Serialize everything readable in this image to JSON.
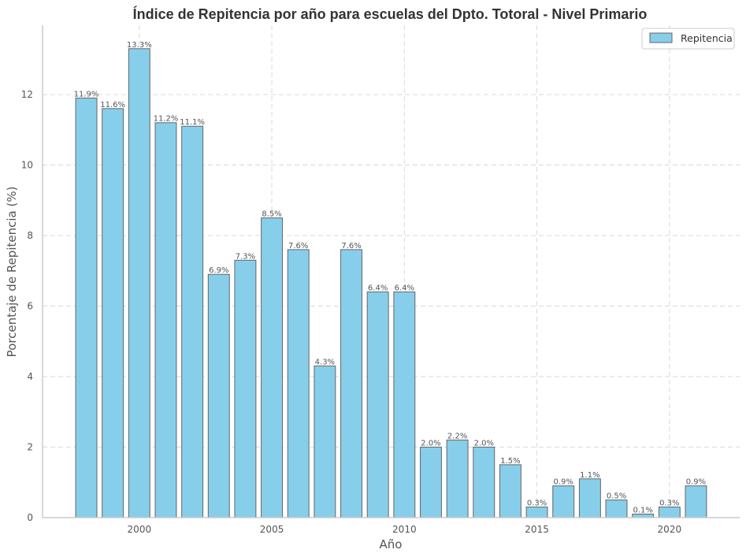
{
  "chart_data": {
    "type": "bar",
    "title": "Índice de Repitencia por año para escuelas del Dpto. Totoral - Nivel Primario",
    "xlabel": "Año",
    "ylabel": "Porcentaje de Repitencia (%)",
    "x": [
      1998,
      1999,
      2000,
      2001,
      2002,
      2003,
      2004,
      2005,
      2006,
      2007,
      2008,
      2009,
      2010,
      2011,
      2012,
      2013,
      2014,
      2015,
      2016,
      2017,
      2018,
      2019,
      2020,
      2021
    ],
    "series": [
      {
        "name": "Repitencia",
        "values": [
          11.9,
          11.6,
          13.3,
          11.2,
          11.1,
          6.9,
          7.3,
          8.5,
          7.6,
          4.3,
          7.6,
          6.4,
          6.4,
          2.0,
          2.2,
          2.0,
          1.5,
          0.3,
          0.9,
          1.1,
          0.5,
          0.1,
          0.3,
          0.9
        ],
        "labels": [
          "11.9%",
          "11.6%",
          "13.3%",
          "11.2%",
          "11.1%",
          "6.9%",
          "7.3%",
          "8.5%",
          "7.6%",
          "4.3%",
          "7.6%",
          "6.4%",
          "6.4%",
          "2.0%",
          "2.2%",
          "2.0%",
          "1.5%",
          "0.3%",
          "0.9%",
          "1.1%",
          "0.5%",
          "0.1%",
          "0.3%",
          "0.9%"
        ]
      }
    ],
    "xticks": [
      2000,
      2005,
      2010,
      2015,
      2020
    ],
    "yticks": [
      0,
      2,
      4,
      6,
      8,
      10,
      12
    ],
    "xlim": [
      1996.35,
      2022.65
    ],
    "ylim": [
      0,
      13.965
    ],
    "grid": true,
    "legend_position": "top-right",
    "colors": {
      "bar_fill": "#87ceeb",
      "bar_edge": "#666666",
      "grid": "#d9d9d9",
      "axis": "#cccccc"
    }
  }
}
